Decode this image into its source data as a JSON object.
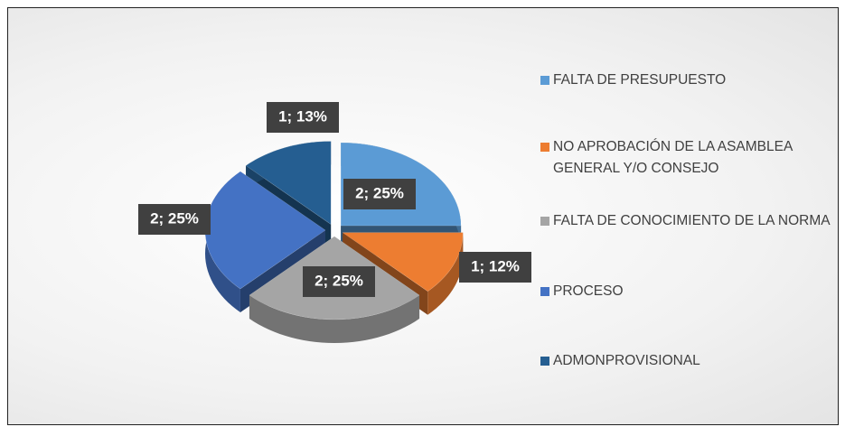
{
  "chart_data": {
    "type": "pie3d",
    "categories": [
      "FALTA DE PRESUPUESTO",
      "NO APROBACIÓN DE LA ASAMBLEA GENERAL Y/O CONSEJO",
      "FALTA DE CONOCIMIENTO DE LA NORMA",
      "PROCESO",
      "ADMONPROVISIONAL"
    ],
    "values": [
      2,
      1,
      2,
      2,
      1
    ],
    "value_labels": [
      "2; 25%",
      "1; 12%",
      "2; 25%",
      "2; 25%",
      "1; 13%"
    ],
    "colors": [
      "#5b9bd5",
      "#ed7d31",
      "#a5a5a5",
      "#4472c4",
      "#255e91"
    ],
    "legend": "right"
  }
}
